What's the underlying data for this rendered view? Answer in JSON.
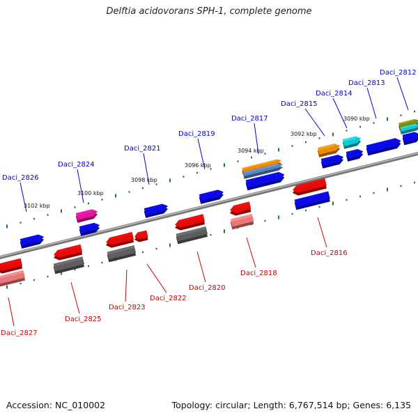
{
  "title": "Delftia acidovorans SPH-1, complete genome",
  "footer": {
    "accession": "Accession: NC_010002",
    "summary": "Topology: circular; Length: 6,767,514 bp; Genes: 6,135"
  },
  "colors": {
    "backbone": "#7a7a7a",
    "tick": "#1f7a1f",
    "upper_label": "#0000cc",
    "lower_label": "#cc0000",
    "blue": "#0a0ae6",
    "red": "#e60a0a",
    "pink": "#e87878",
    "gray": "#5e5e5e",
    "magenta": "#e6149b",
    "orange": "#ee8a0a",
    "steel": "#5a86c8",
    "cyan": "#14c8d2",
    "olive": "#7a8a14"
  },
  "ruler_labels": [
    "3102 kbp",
    "3100 kbp",
    "3098 kbp",
    "3096 kbp",
    "3094 kbp",
    "3092 kbp",
    "3090 kbp"
  ],
  "upper_genes": [
    "Daci_2826",
    "Daci_2824",
    "Daci_2821",
    "Daci_2819",
    "Daci_2817",
    "Daci_2815",
    "Daci_2814",
    "Daci_2813",
    "Daci_2812"
  ],
  "lower_genes": [
    "Daci_2827",
    "Daci_2825",
    "Daci_2823",
    "Daci_2822",
    "Daci_2820",
    "Daci_2818",
    "Daci_2816"
  ]
}
